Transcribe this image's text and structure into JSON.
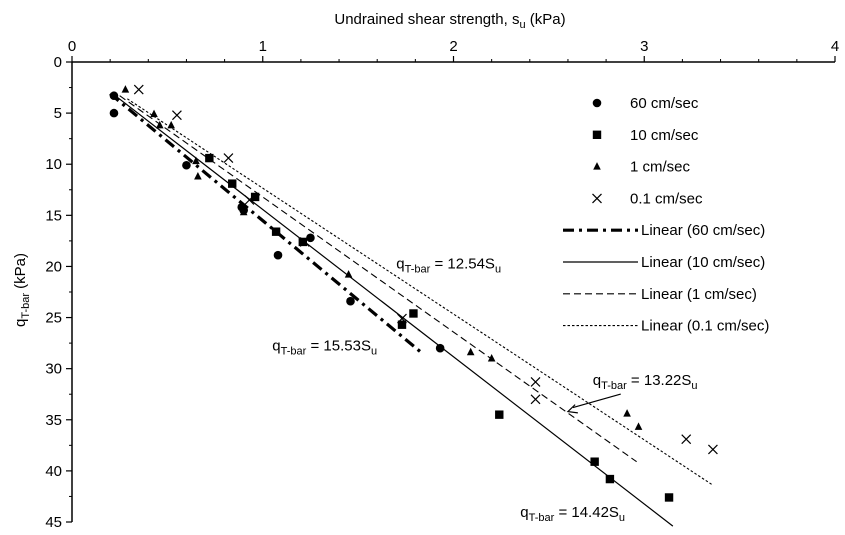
{
  "chart_data": {
    "type": "scatter",
    "title": "",
    "xlabel": {
      "main": "Undrained shear strength, s",
      "sub": "u",
      "unit": " (kPa)"
    },
    "ylabel": {
      "main": "q",
      "sub": "T-bar",
      "unit": "  (kPa)"
    },
    "x_axis_position": "top",
    "y_axis_inverted": true,
    "xlim": [
      0,
      4
    ],
    "ylim": [
      0,
      45
    ],
    "x_ticks": [
      "0",
      "1",
      "2",
      "3",
      "4"
    ],
    "y_ticks": [
      "0",
      "5",
      "10",
      "15",
      "20",
      "25",
      "30",
      "35",
      "40",
      "45"
    ],
    "grid": false,
    "legend_position": "right",
    "series": [
      {
        "name": "60 cm/sec",
        "marker": "circle",
        "points": [
          [
            0.22,
            3.3
          ],
          [
            0.22,
            5.0
          ],
          [
            0.6,
            10.1
          ],
          [
            0.89,
            14.2
          ],
          [
            0.9,
            14.5
          ],
          [
            1.08,
            18.9
          ],
          [
            1.25,
            17.2
          ],
          [
            1.46,
            23.4
          ],
          [
            1.93,
            28.0
          ]
        ]
      },
      {
        "name": "10 cm/sec",
        "marker": "square",
        "points": [
          [
            0.72,
            9.4
          ],
          [
            0.84,
            11.9
          ],
          [
            0.96,
            13.2
          ],
          [
            1.07,
            16.6
          ],
          [
            1.21,
            17.6
          ],
          [
            1.73,
            25.7
          ],
          [
            1.79,
            24.6
          ],
          [
            2.24,
            34.5
          ],
          [
            2.74,
            39.1
          ],
          [
            2.82,
            40.8
          ],
          [
            3.13,
            42.6
          ]
        ]
      },
      {
        "name": "1 cm/sec",
        "marker": "triangle",
        "points": [
          [
            0.28,
            2.7
          ],
          [
            0.43,
            5.1
          ],
          [
            0.46,
            6.2
          ],
          [
            0.52,
            6.2
          ],
          [
            0.65,
            9.7
          ],
          [
            0.66,
            11.2
          ],
          [
            0.9,
            14.7
          ],
          [
            1.45,
            20.8
          ],
          [
            2.09,
            28.4
          ],
          [
            2.2,
            29.0
          ],
          [
            2.91,
            34.4
          ],
          [
            2.97,
            35.7
          ]
        ]
      },
      {
        "name": "0.1 cm/sec",
        "marker": "x",
        "points": [
          [
            0.35,
            2.7
          ],
          [
            0.55,
            5.2
          ],
          [
            0.82,
            9.4
          ],
          [
            0.93,
            13.5
          ],
          [
            1.22,
            17.6
          ],
          [
            1.73,
            25.1
          ],
          [
            2.43,
            31.3
          ],
          [
            2.43,
            33.0
          ],
          [
            3.22,
            36.9
          ],
          [
            3.36,
            37.9
          ]
        ]
      },
      {
        "name": "Linear (60 cm/sec)",
        "type": "line",
        "line_style": "dash-dot-thick",
        "points": [
          [
            0.2,
            3.1
          ],
          [
            1.83,
            28.4
          ]
        ]
      },
      {
        "name": "Linear (10 cm/sec)",
        "type": "line",
        "line_style": "solid",
        "points": [
          [
            0.22,
            3.2
          ],
          [
            3.15,
            45.4
          ]
        ]
      },
      {
        "name": "Linear (1 cm/sec)",
        "type": "line",
        "line_style": "dashed",
        "points": [
          [
            0.25,
            3.3
          ],
          [
            2.96,
            39.1
          ]
        ]
      },
      {
        "name": "Linear (0.1 cm/sec)",
        "type": "line",
        "line_style": "dotted",
        "points": [
          [
            0.29,
            3.6
          ],
          [
            3.36,
            41.4
          ]
        ]
      }
    ],
    "annotations": [
      {
        "text_main": "q",
        "text_sub": "T-bar",
        "text_eq": " = 12.54S",
        "text_sub2": "u",
        "x": 1.7,
        "y": 20.2
      },
      {
        "text_main": "q",
        "text_sub": "T-bar",
        "text_eq": " = 15.53S",
        "text_sub2": "u",
        "x": 1.05,
        "y": 28.2
      },
      {
        "text_main": "q",
        "text_sub": "T-bar",
        "text_eq": " = 13.22S",
        "text_sub2": "u",
        "x": 2.73,
        "y": 31.6,
        "arrow_to": [
          2.6,
          34.2
        ]
      },
      {
        "text_main": "q",
        "text_sub": "T-bar",
        "text_eq": " = 14.42S",
        "text_sub2": "u",
        "x": 2.35,
        "y": 44.5
      }
    ]
  }
}
